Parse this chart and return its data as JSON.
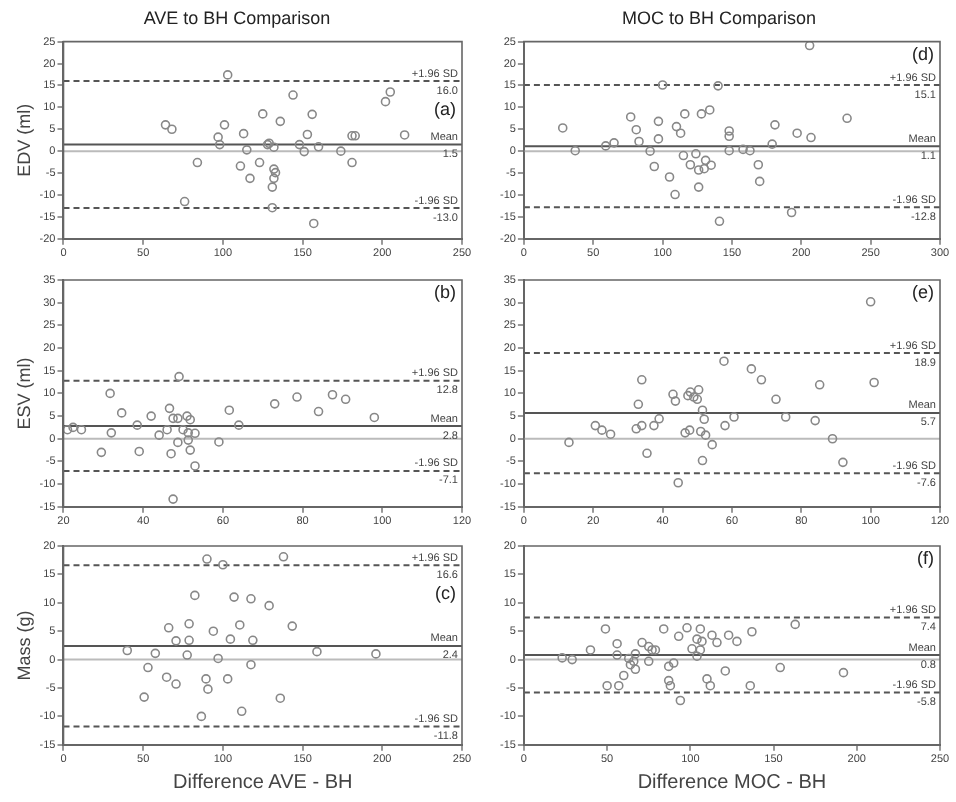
{
  "chart_data": [
    {
      "type": "scatter",
      "title": "AVE to BH Comparison",
      "ylabel": "EDV (ml)",
      "annotations": [
        "(a)"
      ],
      "color": "#888888",
      "marker": "circle",
      "x": [
        103,
        64,
        68,
        101,
        97,
        98,
        113,
        125,
        136,
        144,
        156,
        153,
        115,
        128,
        129,
        132,
        148,
        151,
        160,
        174,
        181,
        183,
        181,
        202,
        205,
        214,
        84,
        111,
        123,
        117,
        132,
        133,
        132,
        131,
        131,
        76,
        157
      ],
      "values": [
        17.4,
        6.0,
        5.0,
        6.0,
        3.2,
        1.5,
        4.0,
        8.5,
        6.8,
        12.8,
        8.4,
        3.8,
        0.3,
        1.5,
        1.8,
        0.9,
        1.5,
        -0.1,
        1.0,
        0,
        3.5,
        3.5,
        -2.6,
        11.3,
        13.5,
        3.7,
        -2.6,
        -3.4,
        -2.6,
        -6.2,
        -4.1,
        -4.9,
        -6.2,
        -8.2,
        -12.9,
        -11.5,
        -16.5
      ],
      "xlim": [
        0,
        250
      ],
      "xticks": [
        0,
        50,
        100,
        150,
        200,
        250
      ],
      "ylim": [
        -20,
        25
      ],
      "yticks": [
        -20,
        -15,
        -10,
        -5,
        0,
        5,
        10,
        15,
        20,
        25
      ],
      "ref_lines": [
        {
          "axis": "y",
          "value": 16.0,
          "label": "+1.96 SD\n16.0",
          "color": "#555555",
          "line_style": "dashed"
        },
        {
          "axis": "y",
          "value": 1.5,
          "label": "Mean\n1.5",
          "color": "#555555",
          "line_style": "solid"
        },
        {
          "axis": "y",
          "value": 0,
          "color": "#bbbbbb",
          "line_style": "solid"
        },
        {
          "axis": "y",
          "value": -13.0,
          "label": "-1.96 SD\n-13.0",
          "color": "#555555",
          "line_style": "dashed"
        }
      ]
    },
    {
      "type": "scatter",
      "title": "MOC to BH Comparison",
      "annotations": [
        "(d)"
      ],
      "color": "#888888",
      "marker": "circle",
      "x": [
        206,
        100,
        140,
        28,
        37,
        59,
        65,
        77,
        81,
        83,
        97,
        97,
        110,
        113,
        116,
        128,
        134,
        91,
        94,
        105,
        109,
        115,
        120,
        124,
        126,
        130,
        131,
        135,
        126,
        141,
        148,
        148,
        148,
        158,
        163,
        169,
        170,
        179,
        181,
        193,
        197,
        207,
        233
      ],
      "values": [
        24.1,
        15.1,
        14.9,
        5.3,
        0.1,
        1.2,
        1.9,
        7.8,
        4.9,
        2.2,
        6.8,
        2.8,
        5.6,
        4.1,
        8.5,
        8.5,
        9.4,
        0,
        -3.5,
        -5.9,
        -9.9,
        -1.0,
        -3.1,
        -0.6,
        -4.3,
        -4.0,
        -2.1,
        -3.2,
        -8.2,
        -16.0,
        4.6,
        3.4,
        0.1,
        0.4,
        0.1,
        -3.1,
        -6.9,
        1.6,
        6.0,
        -14.0,
        4.1,
        3.1,
        7.5
      ],
      "xlim": [
        0,
        300
      ],
      "xticks": [
        0,
        50,
        100,
        150,
        200,
        250,
        300
      ],
      "ylim": [
        -20,
        25
      ],
      "yticks": [
        -20,
        -15,
        -10,
        -5,
        0,
        5,
        10,
        15,
        20,
        25
      ],
      "ref_lines": [
        {
          "axis": "y",
          "value": 15.1,
          "label": "+1.96 SD\n15.1",
          "color": "#555555",
          "line_style": "dashed"
        },
        {
          "axis": "y",
          "value": 1.1,
          "label": "Mean\n1.1",
          "color": "#555555",
          "line_style": "solid"
        },
        {
          "axis": "y",
          "value": 0,
          "color": "#bbbbbb",
          "line_style": "solid"
        },
        {
          "axis": "y",
          "value": -12.8,
          "label": "-1.96 SD\n-12.8",
          "color": "#555555",
          "line_style": "dashed"
        }
      ]
    },
    {
      "type": "scatter",
      "ylabel": "ESV (ml)",
      "annotations": [
        "(b)"
      ],
      "color": "#888888",
      "marker": "circle",
      "x": [
        21,
        22.4,
        24.5,
        29.5,
        31.7,
        32,
        34.6,
        39,
        38.5,
        42,
        44,
        46,
        46.6,
        47,
        47.5,
        48.7,
        49,
        50,
        51,
        51.8,
        51.3,
        48.7,
        53,
        51.3,
        51.8,
        53,
        47.5,
        59,
        61.6,
        64,
        73,
        78.6,
        84,
        87.5,
        90.8,
        98
      ],
      "values": [
        2.0,
        2.5,
        2.0,
        -3.0,
        10.0,
        1.3,
        5.7,
        -2.8,
        3.0,
        5.0,
        0.8,
        2.0,
        6.7,
        -3.3,
        4.5,
        4.5,
        13.7,
        2.0,
        5.0,
        4.2,
        -0.3,
        -0.8,
        1.2,
        1.3,
        -2.5,
        -6.0,
        -13.3,
        -0.7,
        6.3,
        3.0,
        7.7,
        9.2,
        6.0,
        9.7,
        8.7,
        4.7
      ],
      "xlim": [
        20,
        120
      ],
      "xticks": [
        20,
        40,
        60,
        80,
        100,
        120
      ],
      "ylim": [
        -15,
        35
      ],
      "yticks": [
        -15,
        -10,
        -5,
        0,
        5,
        10,
        15,
        20,
        25,
        30,
        35
      ],
      "ref_lines": [
        {
          "axis": "y",
          "value": 12.8,
          "label": "+1.96 SD\n12.8",
          "color": "#555555",
          "line_style": "dashed"
        },
        {
          "axis": "y",
          "value": 2.8,
          "label": "Mean\n2.8",
          "color": "#555555",
          "line_style": "solid"
        },
        {
          "axis": "y",
          "value": 0,
          "color": "#bbbbbb",
          "line_style": "solid"
        },
        {
          "axis": "y",
          "value": -7.1,
          "label": "-1.96 SD\n-7.1",
          "color": "#555555",
          "line_style": "dashed"
        }
      ]
    },
    {
      "type": "scatter",
      "annotations": [
        "(e)"
      ],
      "color": "#888888",
      "marker": "circle",
      "x": [
        13,
        20.6,
        22.5,
        25,
        33,
        34,
        32.4,
        34,
        35.5,
        37.5,
        39,
        43,
        43.7,
        44.5,
        46.5,
        47.3,
        47.8,
        48,
        49,
        50,
        50.4,
        51,
        51.5,
        52,
        52.4,
        51.5,
        54.3,
        57.7,
        58,
        60.6,
        65.6,
        68.5,
        72.7,
        75.5,
        84,
        85.3,
        89,
        92,
        100,
        101
      ],
      "values": [
        -0.8,
        2.9,
        1.9,
        1.0,
        7.6,
        13.0,
        2.2,
        2.9,
        -3.2,
        2.9,
        4.4,
        9.8,
        8.3,
        -9.7,
        1.3,
        9.5,
        1.9,
        10.3,
        9.2,
        8.7,
        10.8,
        1.6,
        6.3,
        4.3,
        0.8,
        -4.8,
        -1.3,
        17.1,
        2.9,
        4.8,
        15.4,
        13.0,
        8.7,
        4.8,
        4.0,
        11.9,
        0,
        -5.2,
        30.2,
        12.4
      ],
      "xlim": [
        0,
        120
      ],
      "xticks": [
        0,
        20,
        40,
        60,
        80,
        100,
        120
      ],
      "ylim": [
        -15,
        35
      ],
      "yticks": [
        -15,
        -10,
        -5,
        0,
        5,
        10,
        15,
        20,
        25,
        30,
        35
      ],
      "ref_lines": [
        {
          "axis": "y",
          "value": 18.9,
          "label": "+1.96 SD\n18.9",
          "color": "#555555",
          "line_style": "dashed"
        },
        {
          "axis": "y",
          "value": 5.7,
          "label": "Mean\n5.7",
          "color": "#555555",
          "line_style": "solid"
        },
        {
          "axis": "y",
          "value": 0,
          "color": "#bbbbbb",
          "line_style": "solid"
        },
        {
          "axis": "y",
          "value": -7.6,
          "label": "-1.96 SD\n-7.6",
          "color": "#555555",
          "line_style": "dashed"
        }
      ]
    },
    {
      "type": "scatter",
      "ylabel": "Mass (g)",
      "xlabel": "Difference AVE - BH",
      "annotations": [
        "(c)"
      ],
      "color": "#888888",
      "marker": "circle",
      "x": [
        40,
        57.6,
        53,
        50.6,
        66,
        70.6,
        70.6,
        64.7,
        78.8,
        78.8,
        82.4,
        77.6,
        86.5,
        90,
        89.4,
        90.6,
        94,
        97,
        103,
        104.7,
        107,
        110.6,
        111.8,
        117.6,
        117.6,
        118.8,
        129,
        136,
        138,
        143.5,
        159,
        196,
        100
      ],
      "values": [
        1.6,
        1.1,
        -1.4,
        -6.6,
        5.6,
        3.3,
        -4.3,
        -3.1,
        3.4,
        6.3,
        11.3,
        0.8,
        -10.0,
        17.7,
        -3.4,
        -5.2,
        5.0,
        0.2,
        -3.4,
        3.6,
        11.0,
        6.1,
        -9.1,
        10.7,
        -0.9,
        3.4,
        9.5,
        -6.8,
        18.1,
        5.9,
        1.4,
        1.0,
        16.7
      ],
      "xlim": [
        0,
        250
      ],
      "xticks": [
        0,
        50,
        100,
        150,
        200,
        250
      ],
      "ylim": [
        -15,
        20
      ],
      "yticks": [
        -15,
        -10,
        -5,
        0,
        5,
        10,
        15,
        20
      ],
      "ref_lines": [
        {
          "axis": "y",
          "value": 16.6,
          "label": "+1.96 SD\n16.6",
          "color": "#555555",
          "line_style": "dashed"
        },
        {
          "axis": "y",
          "value": 2.4,
          "label": "Mean\n2.4",
          "color": "#555555",
          "line_style": "solid"
        },
        {
          "axis": "y",
          "value": 0,
          "color": "#bbbbbb",
          "line_style": "solid"
        },
        {
          "axis": "y",
          "value": -11.8,
          "label": "-1.96 SD\n-11.8",
          "color": "#555555",
          "line_style": "dashed"
        }
      ]
    },
    {
      "type": "scatter",
      "xlabel": "Difference MOC - BH",
      "annotations": [
        "(f)"
      ],
      "color": "#888888",
      "marker": "circle",
      "x": [
        23,
        29,
        40,
        49,
        50,
        56,
        56,
        57,
        60,
        63,
        64,
        66,
        67,
        67,
        71,
        75,
        77,
        79,
        75,
        84,
        87,
        87,
        88,
        90,
        93,
        94,
        98,
        101,
        104,
        106,
        107,
        106,
        104,
        110,
        112,
        113,
        116,
        121,
        123,
        128,
        136,
        137,
        154,
        163,
        192
      ],
      "values": [
        0.3,
        0,
        1.7,
        5.4,
        -4.6,
        2.8,
        0.8,
        -4.6,
        -2.8,
        0.2,
        -0.9,
        -0.3,
        1.0,
        -1.7,
        3.0,
        2.3,
        1.7,
        1.7,
        -0.3,
        5.4,
        -1.2,
        -3.7,
        -4.6,
        -0.6,
        4.1,
        -7.2,
        5.6,
        1.9,
        3.6,
        5.4,
        3.2,
        1.7,
        0.6,
        -3.4,
        -4.6,
        4.3,
        3.0,
        -2.0,
        4.3,
        3.2,
        -4.6,
        4.9,
        -1.4,
        6.2,
        -2.3
      ],
      "xlim": [
        0,
        250
      ],
      "xticks": [
        0,
        50,
        100,
        150,
        200,
        250
      ],
      "ylim": [
        -15,
        20
      ],
      "yticks": [
        -15,
        -10,
        -5,
        0,
        5,
        10,
        15,
        20
      ],
      "ref_lines": [
        {
          "axis": "y",
          "value": 7.4,
          "label": "+1.96 SD\n7.4",
          "color": "#555555",
          "line_style": "dashed"
        },
        {
          "axis": "y",
          "value": 0.8,
          "label": "Mean\n0.8",
          "color": "#555555",
          "line_style": "solid"
        },
        {
          "axis": "y",
          "value": 0,
          "color": "#bbbbbb",
          "line_style": "solid"
        },
        {
          "axis": "y",
          "value": -5.8,
          "label": "-1.96 SD\n-5.8",
          "color": "#555555",
          "line_style": "dashed"
        }
      ]
    }
  ]
}
